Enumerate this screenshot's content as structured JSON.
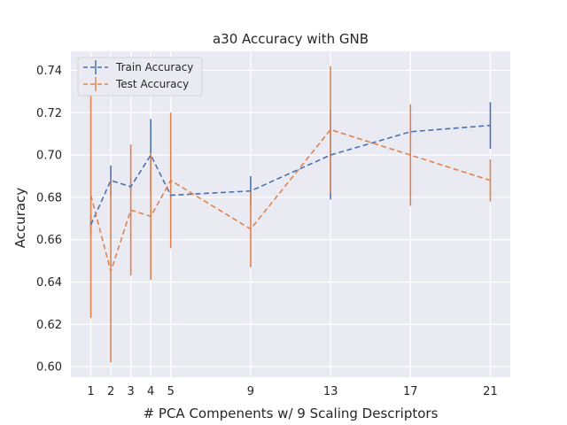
{
  "chart_data": {
    "type": "line",
    "title": "a30 Accuracy with GNB",
    "xlabel": "# PCA Compenents w/ 9 Scaling Descriptors",
    "ylabel": "Accuracy",
    "x": [
      1,
      2,
      3,
      4,
      5,
      9,
      13,
      17,
      21
    ],
    "xticks": [
      1,
      2,
      3,
      4,
      5,
      9,
      13,
      17,
      21
    ],
    "yticks": [
      0.6,
      0.62,
      0.64,
      0.66,
      0.68,
      0.7,
      0.72,
      0.74
    ],
    "xlim": [
      0.0,
      22.0
    ],
    "ylim": [
      0.595,
      0.749
    ],
    "grid": true,
    "legend_position": "top-left",
    "background_color": "#eaeaf2",
    "series": [
      {
        "name": "Train Accuracy",
        "color": "#4c72b0",
        "values": [
          0.667,
          0.688,
          0.685,
          0.7,
          0.681,
          0.683,
          0.7,
          0.711,
          0.714
        ],
        "errors": [
          0.005,
          0.007,
          0.003,
          0.017,
          0.003,
          0.007,
          0.021,
          0.003,
          0.011
        ]
      },
      {
        "name": "Test Accuracy",
        "color": "#dd8452",
        "values": [
          0.681,
          0.645,
          0.674,
          0.671,
          0.688,
          0.665,
          0.712,
          0.7,
          0.688
        ],
        "errors": [
          0.058,
          0.043,
          0.031,
          0.03,
          0.032,
          0.018,
          0.03,
          0.024,
          0.01
        ]
      }
    ]
  }
}
